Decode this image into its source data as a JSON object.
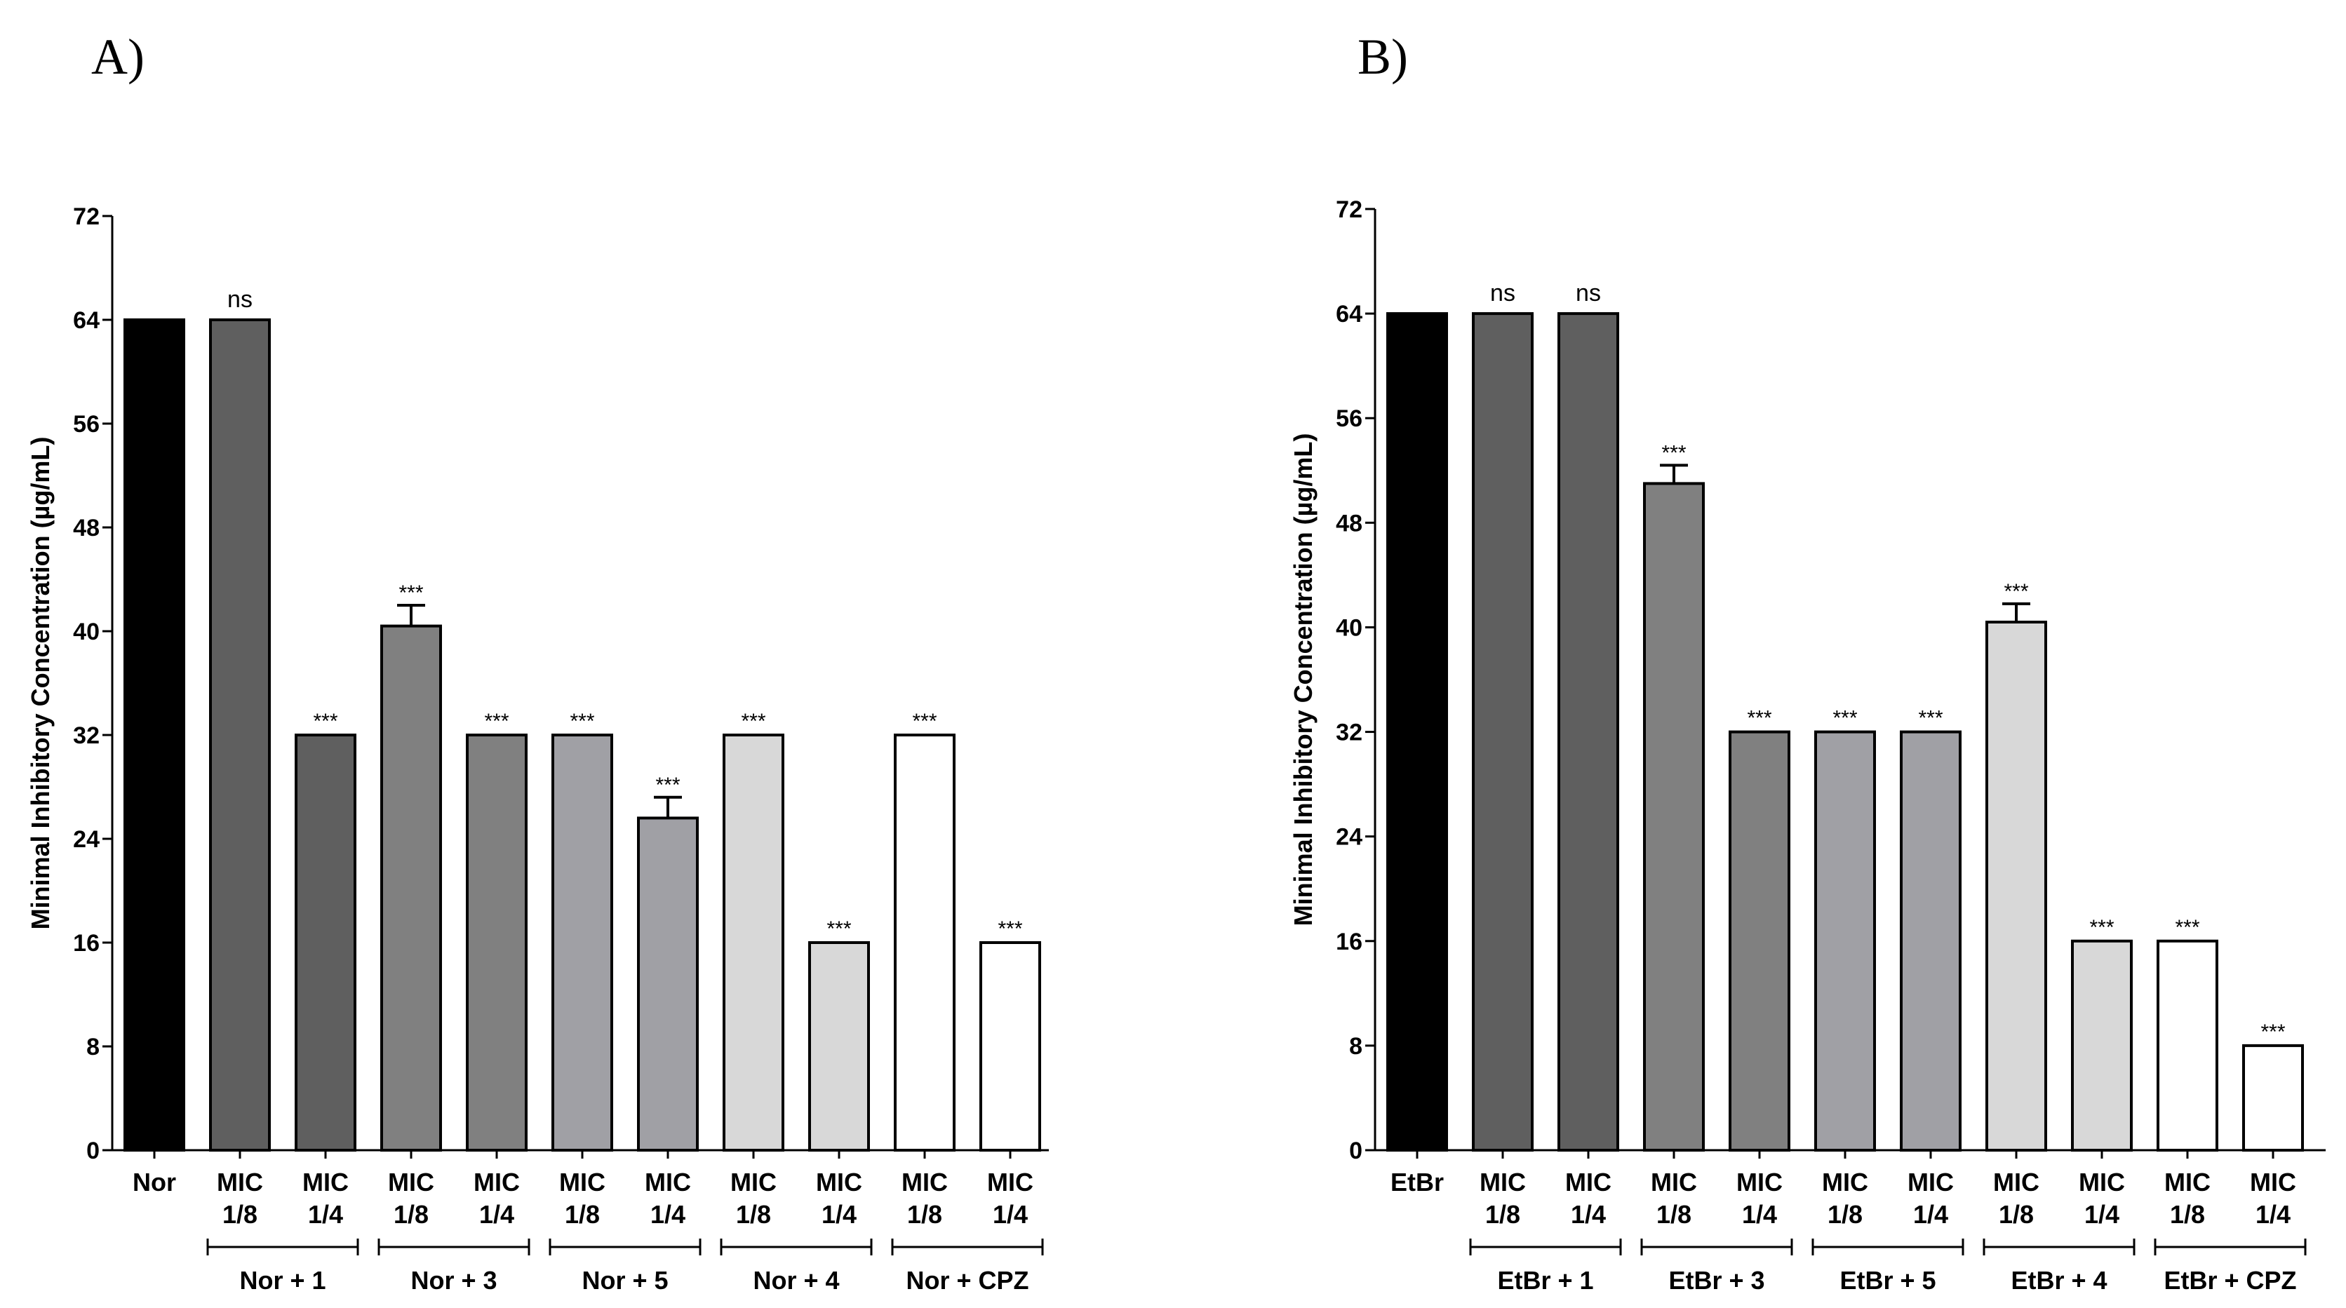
{
  "chart_data": [
    {
      "type": "bar",
      "panel_label": "A)",
      "ylabel": "Minimal Inhibitory Concentration (µg/mL)",
      "ylim": [
        0,
        72
      ],
      "yticks": [
        0,
        8,
        16,
        24,
        32,
        40,
        48,
        56,
        64,
        72
      ],
      "categories": [
        {
          "l1": "Nor",
          "l2": ""
        },
        {
          "l1": "MIC",
          "l2": "1/8"
        },
        {
          "l1": "MIC",
          "l2": "1/4"
        },
        {
          "l1": "MIC",
          "l2": "1/8"
        },
        {
          "l1": "MIC",
          "l2": "1/4"
        },
        {
          "l1": "MIC",
          "l2": "1/8"
        },
        {
          "l1": "MIC",
          "l2": "1/4"
        },
        {
          "l1": "MIC",
          "l2": "1/8"
        },
        {
          "l1": "MIC",
          "l2": "1/4"
        },
        {
          "l1": "MIC",
          "l2": "1/8"
        },
        {
          "l1": "MIC",
          "l2": "1/4"
        }
      ],
      "values": [
        64,
        64,
        32,
        40.4,
        32,
        32,
        25.6,
        32,
        16,
        32,
        16
      ],
      "errors": [
        0,
        0,
        0,
        1.6,
        0,
        0,
        1.6,
        0,
        0,
        0,
        0
      ],
      "colors": [
        "#000000",
        "#5f5f5f",
        "#5f5f5f",
        "#808080",
        "#808080",
        "#a0a0a5",
        "#a0a0a5",
        "#d8d8d8",
        "#d8d8d8",
        "#ffffff",
        "#ffffff"
      ],
      "annotations": [
        "",
        "ns",
        "***",
        "***",
        "***",
        "***",
        "***",
        "***",
        "***",
        "***",
        "***"
      ],
      "groups": [
        {
          "label": "Nor + 1",
          "from": 1,
          "to": 2
        },
        {
          "label": "Nor + 3",
          "from": 3,
          "to": 4
        },
        {
          "label": "Nor + 5",
          "from": 5,
          "to": 6
        },
        {
          "label": "Nor + 4",
          "from": 7,
          "to": 8
        },
        {
          "label": "Nor + CPZ",
          "from": 9,
          "to": 10
        }
      ]
    },
    {
      "type": "bar",
      "panel_label": "B)",
      "ylabel": "Minimal Inhibitory Concentration (µg/mL)",
      "ylim": [
        0,
        72
      ],
      "yticks": [
        0,
        8,
        16,
        24,
        32,
        40,
        48,
        56,
        64,
        72
      ],
      "categories": [
        {
          "l1": "EtBr",
          "l2": ""
        },
        {
          "l1": "MIC",
          "l2": "1/8"
        },
        {
          "l1": "MIC",
          "l2": "1/4"
        },
        {
          "l1": "MIC",
          "l2": "1/8"
        },
        {
          "l1": "MIC",
          "l2": "1/4"
        },
        {
          "l1": "MIC",
          "l2": "1/8"
        },
        {
          "l1": "MIC",
          "l2": "1/4"
        },
        {
          "l1": "MIC",
          "l2": "1/8"
        },
        {
          "l1": "MIC",
          "l2": "1/4"
        },
        {
          "l1": "MIC",
          "l2": "1/8"
        },
        {
          "l1": "MIC",
          "l2": "1/4"
        }
      ],
      "values": [
        64,
        64,
        64,
        51,
        32,
        32,
        32,
        40.4,
        16,
        16,
        8
      ],
      "errors": [
        0,
        0,
        0,
        1.4,
        0,
        0,
        0,
        1.4,
        0,
        0,
        0
      ],
      "colors": [
        "#000000",
        "#5f5f5f",
        "#5f5f5f",
        "#808080",
        "#808080",
        "#a0a0a5",
        "#a0a0a5",
        "#d8d8d8",
        "#d8d8d8",
        "#ffffff",
        "#ffffff"
      ],
      "annotations": [
        "",
        "ns",
        "ns",
        "***",
        "***",
        "***",
        "***",
        "***",
        "***",
        "***",
        "***"
      ],
      "groups": [
        {
          "label": "EtBr + 1",
          "from": 1,
          "to": 2
        },
        {
          "label": "EtBr + 3",
          "from": 3,
          "to": 4
        },
        {
          "label": "EtBr + 5",
          "from": 5,
          "to": 6
        },
        {
          "label": "EtBr + 4",
          "from": 7,
          "to": 8
        },
        {
          "label": "EtBr + CPZ",
          "from": 9,
          "to": 10
        }
      ]
    }
  ]
}
